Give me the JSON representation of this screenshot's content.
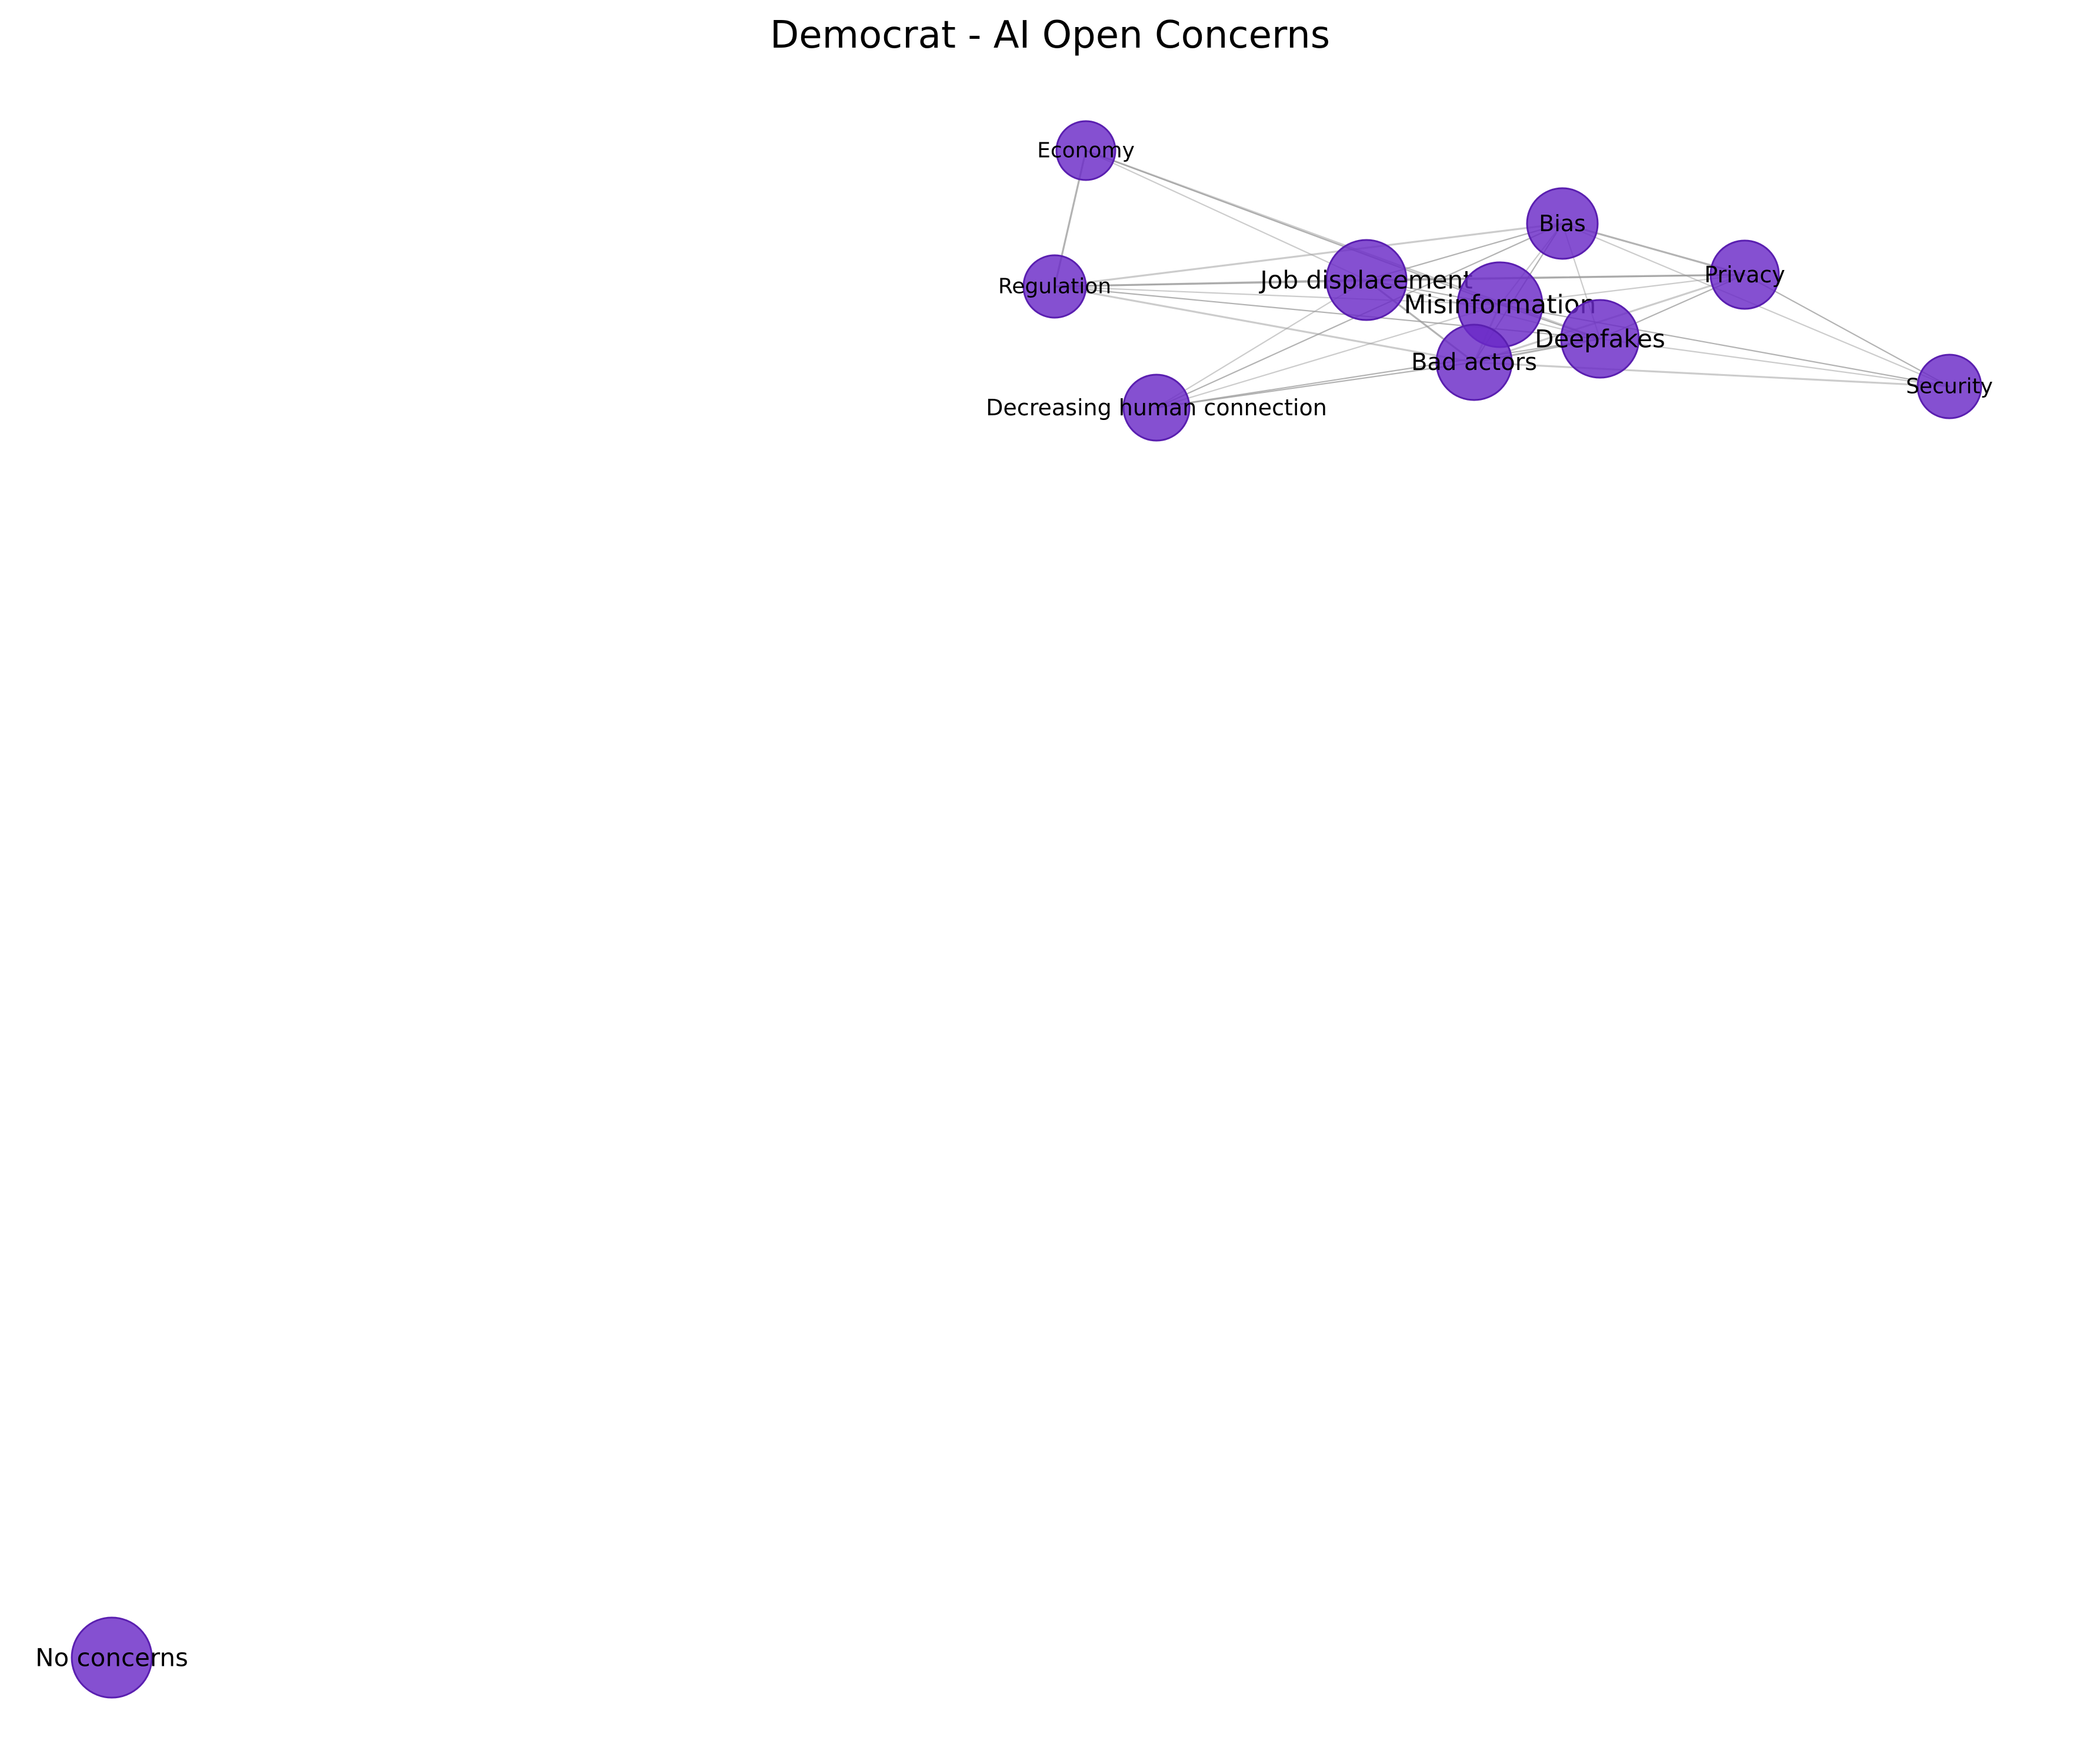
{
  "title": "Democrat - AI Open Concerns",
  "colors": {
    "node_fill": "#6a29c7",
    "node_stroke": "#5a1fb0",
    "edge": "#9a9a9a",
    "background": "#ffffff"
  },
  "nodes": [
    {
      "id": "economy",
      "label": "Economy"
    },
    {
      "id": "bias",
      "label": "Bias"
    },
    {
      "id": "privacy",
      "label": "Privacy"
    },
    {
      "id": "regulation",
      "label": "Regulation"
    },
    {
      "id": "job_displacement",
      "label": "Job displacement"
    },
    {
      "id": "misinformation",
      "label": "Misinformation"
    },
    {
      "id": "deepfakes",
      "label": "Deepfakes"
    },
    {
      "id": "bad_actors",
      "label": "Bad actors"
    },
    {
      "id": "decreasing_human_connection",
      "label": "Decreasing human connection"
    },
    {
      "id": "security",
      "label": "Security"
    },
    {
      "id": "no_concerns",
      "label": "No concerns"
    }
  ],
  "edges": [
    {
      "source": "economy",
      "target": "regulation"
    },
    {
      "source": "economy",
      "target": "job_displacement"
    },
    {
      "source": "economy",
      "target": "misinformation"
    },
    {
      "source": "economy",
      "target": "deepfakes"
    },
    {
      "source": "bias",
      "target": "job_displacement"
    },
    {
      "source": "bias",
      "target": "misinformation"
    },
    {
      "source": "bias",
      "target": "privacy"
    },
    {
      "source": "bias",
      "target": "deepfakes"
    },
    {
      "source": "bias",
      "target": "bad_actors"
    },
    {
      "source": "bias",
      "target": "regulation"
    },
    {
      "source": "bias",
      "target": "decreasing_human_connection"
    },
    {
      "source": "bias",
      "target": "security"
    },
    {
      "source": "privacy",
      "target": "job_displacement"
    },
    {
      "source": "privacy",
      "target": "misinformation"
    },
    {
      "source": "privacy",
      "target": "deepfakes"
    },
    {
      "source": "privacy",
      "target": "bad_actors"
    },
    {
      "source": "privacy",
      "target": "security"
    },
    {
      "source": "privacy",
      "target": "regulation"
    },
    {
      "source": "regulation",
      "target": "job_displacement"
    },
    {
      "source": "regulation",
      "target": "misinformation"
    },
    {
      "source": "regulation",
      "target": "deepfakes"
    },
    {
      "source": "regulation",
      "target": "bad_actors"
    },
    {
      "source": "job_displacement",
      "target": "misinformation"
    },
    {
      "source": "job_displacement",
      "target": "deepfakes"
    },
    {
      "source": "job_displacement",
      "target": "bad_actors"
    },
    {
      "source": "job_displacement",
      "target": "decreasing_human_connection"
    },
    {
      "source": "misinformation",
      "target": "deepfakes"
    },
    {
      "source": "misinformation",
      "target": "bad_actors"
    },
    {
      "source": "misinformation",
      "target": "security"
    },
    {
      "source": "misinformation",
      "target": "decreasing_human_connection"
    },
    {
      "source": "deepfakes",
      "target": "bad_actors"
    },
    {
      "source": "deepfakes",
      "target": "security"
    },
    {
      "source": "deepfakes",
      "target": "decreasing_human_connection"
    },
    {
      "source": "bad_actors",
      "target": "security"
    },
    {
      "source": "bad_actors",
      "target": "decreasing_human_connection"
    }
  ]
}
